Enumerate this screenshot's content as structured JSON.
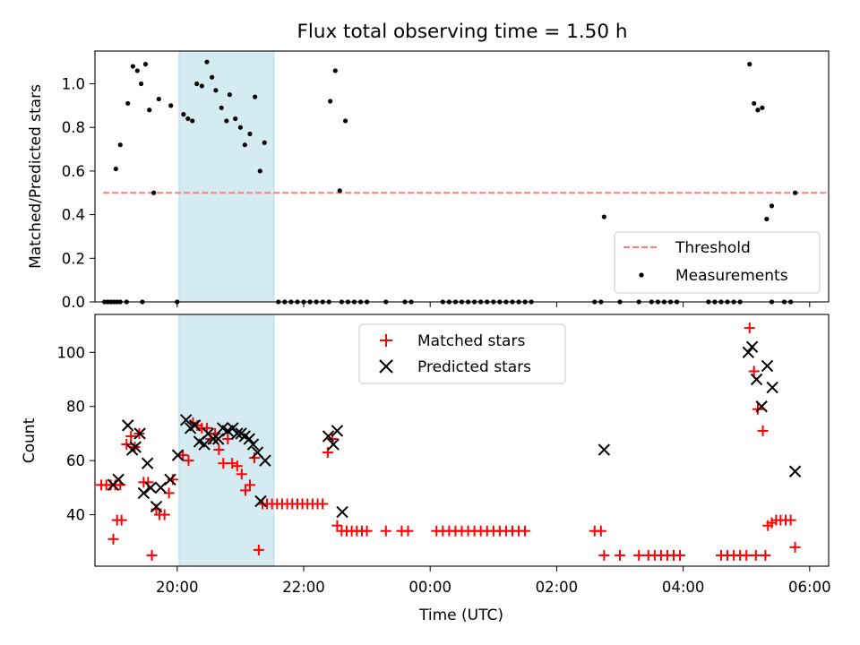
{
  "chart_data": [
    {
      "type": "scatter",
      "title": "Flux total observing time = 1.50 h",
      "ylabel": "Matched/Predicted stars",
      "xlabel": "",
      "xlim": [
        18.7,
        30.3
      ],
      "ylim": [
        0.0,
        1.15
      ],
      "yticks": [
        0.0,
        0.2,
        0.4,
        0.6,
        0.8,
        1.0
      ],
      "ytick_labels": [
        "0.0",
        "0.2",
        "0.4",
        "0.6",
        "0.8",
        "1.0"
      ],
      "highlight_span": [
        20.03,
        21.53
      ],
      "highlight_color": "#d4ebf2",
      "legend_position": "lower-right",
      "threshold": {
        "name": "Threshold",
        "y": 0.5,
        "x": [
          18.83,
          30.73
        ],
        "color": "#ff7b7b"
      },
      "measurements": {
        "name": "Measurements",
        "color": "#000000",
        "points": [
          [
            18.85,
            0
          ],
          [
            18.9,
            0
          ],
          [
            18.95,
            0
          ],
          [
            19.0,
            0
          ],
          [
            19.05,
            0
          ],
          [
            19.1,
            0
          ],
          [
            19.2,
            0
          ],
          [
            19.45,
            0
          ],
          [
            20.0,
            0
          ],
          [
            19.03,
            0.61
          ],
          [
            19.1,
            0.72
          ],
          [
            19.22,
            0.91
          ],
          [
            19.3,
            1.08
          ],
          [
            19.37,
            1.06
          ],
          [
            19.43,
            1.0
          ],
          [
            19.5,
            1.09
          ],
          [
            19.56,
            0.88
          ],
          [
            19.63,
            0.5
          ],
          [
            19.71,
            0.93
          ],
          [
            19.9,
            0.9
          ],
          [
            20.1,
            0.86
          ],
          [
            20.17,
            0.84
          ],
          [
            20.24,
            0.83
          ],
          [
            20.31,
            1.0
          ],
          [
            20.39,
            0.99
          ],
          [
            20.47,
            1.1
          ],
          [
            20.55,
            1.03
          ],
          [
            20.61,
            0.97
          ],
          [
            20.7,
            0.89
          ],
          [
            20.78,
            0.83
          ],
          [
            20.83,
            0.95
          ],
          [
            20.92,
            0.84
          ],
          [
            21.0,
            0.8
          ],
          [
            21.07,
            0.72
          ],
          [
            21.15,
            0.77
          ],
          [
            21.23,
            0.94
          ],
          [
            21.31,
            0.6
          ],
          [
            21.38,
            0.73
          ],
          [
            21.6,
            0
          ],
          [
            21.7,
            0
          ],
          [
            21.8,
            0
          ],
          [
            21.9,
            0
          ],
          [
            22.0,
            0
          ],
          [
            22.1,
            0
          ],
          [
            22.2,
            0
          ],
          [
            22.3,
            0
          ],
          [
            22.4,
            0
          ],
          [
            22.6,
            0
          ],
          [
            22.7,
            0
          ],
          [
            22.8,
            0
          ],
          [
            22.9,
            0
          ],
          [
            23.0,
            0
          ],
          [
            23.3,
            0
          ],
          [
            23.6,
            0
          ],
          [
            23.7,
            0
          ],
          [
            22.42,
            0.92
          ],
          [
            22.5,
            1.06
          ],
          [
            22.57,
            0.51
          ],
          [
            22.66,
            0.83
          ],
          [
            24.2,
            0
          ],
          [
            24.3,
            0
          ],
          [
            24.4,
            0
          ],
          [
            24.5,
            0
          ],
          [
            24.6,
            0
          ],
          [
            24.7,
            0
          ],
          [
            24.8,
            0
          ],
          [
            24.9,
            0
          ],
          [
            25.0,
            0
          ],
          [
            25.1,
            0
          ],
          [
            25.2,
            0
          ],
          [
            25.3,
            0
          ],
          [
            25.4,
            0
          ],
          [
            25.5,
            0
          ],
          [
            25.6,
            0
          ],
          [
            26.6,
            0
          ],
          [
            26.7,
            0
          ],
          [
            27.0,
            0
          ],
          [
            27.3,
            0
          ],
          [
            27.5,
            0
          ],
          [
            27.6,
            0
          ],
          [
            27.7,
            0
          ],
          [
            27.8,
            0
          ],
          [
            27.9,
            0
          ],
          [
            28.4,
            0
          ],
          [
            28.5,
            0
          ],
          [
            28.6,
            0
          ],
          [
            28.7,
            0
          ],
          [
            28.8,
            0
          ],
          [
            28.9,
            0
          ],
          [
            29.4,
            0
          ],
          [
            29.6,
            0
          ],
          [
            29.7,
            0
          ],
          [
            26.75,
            0.39
          ],
          [
            29.05,
            1.09
          ],
          [
            29.12,
            0.91
          ],
          [
            29.18,
            0.88
          ],
          [
            29.25,
            0.89
          ],
          [
            29.32,
            0.38
          ],
          [
            29.4,
            0.44
          ],
          [
            29.77,
            0.5
          ]
        ]
      }
    },
    {
      "type": "scatter",
      "title": "",
      "xlabel": "Time (UTC)",
      "ylabel": "Count",
      "xlim": [
        18.7,
        30.3
      ],
      "ylim": [
        21,
        114
      ],
      "xticks": [
        20,
        22,
        24,
        26,
        28,
        30
      ],
      "xtick_labels": [
        "20:00",
        "22:00",
        "00:00",
        "02:00",
        "04:00",
        "06:00"
      ],
      "yticks": [
        40,
        60,
        80,
        100
      ],
      "ytick_labels": [
        "40",
        "60",
        "80",
        "100"
      ],
      "highlight_span": [
        20.03,
        21.53
      ],
      "highlight_color": "#d4ebf2",
      "legend_position": "upper-center",
      "series": [
        {
          "name": "Matched stars",
          "marker": "plus",
          "color": "#ff0000",
          "points": [
            [
              18.8,
              51
            ],
            [
              18.88,
              51
            ],
            [
              18.95,
              51
            ],
            [
              19.02,
              51
            ],
            [
              19.1,
              51
            ],
            [
              18.99,
              31
            ],
            [
              19.05,
              38
            ],
            [
              19.12,
              38
            ],
            [
              19.2,
              66
            ],
            [
              19.27,
              69
            ],
            [
              19.33,
              65
            ],
            [
              19.4,
              70
            ],
            [
              19.47,
              52
            ],
            [
              19.54,
              52
            ],
            [
              19.6,
              25
            ],
            [
              19.67,
              42
            ],
            [
              19.72,
              40
            ],
            [
              19.8,
              40
            ],
            [
              19.87,
              48
            ],
            [
              19.93,
              53
            ],
            [
              20.09,
              62
            ],
            [
              20.18,
              60
            ],
            [
              20.25,
              74
            ],
            [
              20.32,
              73
            ],
            [
              20.39,
              72
            ],
            [
              20.47,
              72
            ],
            [
              20.53,
              68
            ],
            [
              20.6,
              70
            ],
            [
              20.66,
              64
            ],
            [
              20.73,
              59
            ],
            [
              20.8,
              68
            ],
            [
              20.87,
              59
            ],
            [
              20.95,
              58
            ],
            [
              21.02,
              55
            ],
            [
              21.08,
              49
            ],
            [
              21.15,
              51
            ],
            [
              21.22,
              61
            ],
            [
              21.29,
              27
            ],
            [
              21.35,
              44
            ],
            [
              21.42,
              44
            ],
            [
              21.5,
              44
            ],
            [
              21.58,
              44
            ],
            [
              21.66,
              44
            ],
            [
              21.74,
              44
            ],
            [
              21.82,
              44
            ],
            [
              21.9,
              44
            ],
            [
              21.98,
              44
            ],
            [
              22.06,
              44
            ],
            [
              22.14,
              44
            ],
            [
              22.22,
              44
            ],
            [
              22.3,
              44
            ],
            [
              22.38,
              63
            ],
            [
              22.45,
              68
            ],
            [
              22.53,
              36
            ],
            [
              22.6,
              34
            ],
            [
              22.68,
              34
            ],
            [
              22.76,
              34
            ],
            [
              22.84,
              34
            ],
            [
              22.92,
              34
            ],
            [
              23.0,
              34
            ],
            [
              23.3,
              34
            ],
            [
              23.55,
              34
            ],
            [
              23.65,
              34
            ],
            [
              24.1,
              34
            ],
            [
              24.2,
              34
            ],
            [
              24.3,
              34
            ],
            [
              24.4,
              34
            ],
            [
              24.5,
              34
            ],
            [
              24.6,
              34
            ],
            [
              24.7,
              34
            ],
            [
              24.8,
              34
            ],
            [
              24.9,
              34
            ],
            [
              25.0,
              34
            ],
            [
              25.1,
              34
            ],
            [
              25.2,
              34
            ],
            [
              25.3,
              34
            ],
            [
              25.4,
              34
            ],
            [
              25.5,
              34
            ],
            [
              26.6,
              34
            ],
            [
              26.7,
              34
            ],
            [
              26.75,
              25
            ],
            [
              27.0,
              25
            ],
            [
              27.3,
              25
            ],
            [
              27.45,
              25
            ],
            [
              27.55,
              25
            ],
            [
              27.65,
              25
            ],
            [
              27.75,
              25
            ],
            [
              27.85,
              25
            ],
            [
              27.95,
              25
            ],
            [
              28.6,
              25
            ],
            [
              28.7,
              25
            ],
            [
              28.8,
              25
            ],
            [
              28.9,
              25
            ],
            [
              29.0,
              25
            ],
            [
              29.15,
              25
            ],
            [
              29.3,
              25
            ],
            [
              29.05,
              109
            ],
            [
              29.12,
              93
            ],
            [
              29.18,
              79
            ],
            [
              29.26,
              71
            ],
            [
              29.34,
              36
            ],
            [
              29.4,
              37
            ],
            [
              29.47,
              38
            ],
            [
              29.54,
              38
            ],
            [
              29.62,
              38
            ],
            [
              29.7,
              38
            ],
            [
              29.77,
              28
            ]
          ]
        },
        {
          "name": "Predicted stars",
          "marker": "x",
          "color": "#000000",
          "points": [
            [
              18.99,
              51
            ],
            [
              19.07,
              53
            ],
            [
              19.22,
              73
            ],
            [
              19.29,
              64
            ],
            [
              19.34,
              65
            ],
            [
              19.41,
              70
            ],
            [
              19.47,
              48
            ],
            [
              19.53,
              59
            ],
            [
              19.58,
              50
            ],
            [
              19.67,
              43
            ],
            [
              19.74,
              50
            ],
            [
              19.89,
              53
            ],
            [
              20.01,
              62
            ],
            [
              20.14,
              75
            ],
            [
              20.21,
              72
            ],
            [
              20.28,
              73
            ],
            [
              20.35,
              67
            ],
            [
              20.43,
              66
            ],
            [
              20.49,
              70
            ],
            [
              20.57,
              68
            ],
            [
              20.65,
              68
            ],
            [
              20.72,
              72
            ],
            [
              20.8,
              71
            ],
            [
              20.88,
              72
            ],
            [
              20.95,
              70
            ],
            [
              21.01,
              70
            ],
            [
              21.07,
              69
            ],
            [
              21.14,
              68
            ],
            [
              21.2,
              66
            ],
            [
              21.27,
              63
            ],
            [
              21.32,
              45
            ],
            [
              21.39,
              60
            ],
            [
              22.39,
              69
            ],
            [
              22.47,
              66
            ],
            [
              22.53,
              71
            ],
            [
              22.61,
              41
            ],
            [
              26.75,
              64
            ],
            [
              29.03,
              100
            ],
            [
              29.09,
              102
            ],
            [
              29.16,
              90
            ],
            [
              29.24,
              80
            ],
            [
              29.33,
              95
            ],
            [
              29.41,
              87
            ],
            [
              29.77,
              56
            ]
          ]
        }
      ]
    }
  ]
}
